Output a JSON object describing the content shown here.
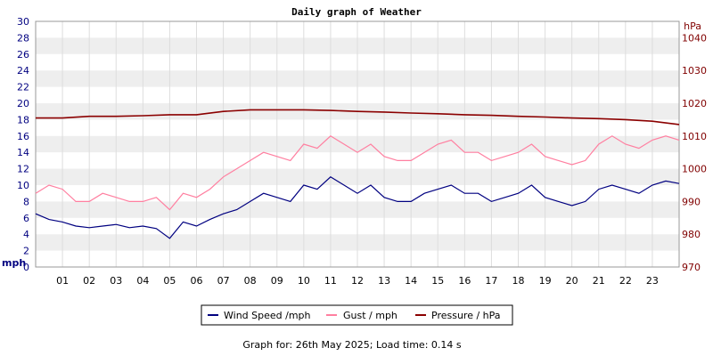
{
  "chart_data": {
    "type": "line",
    "title": "Daily graph of Weather",
    "left_axis": {
      "unit": "mph",
      "min": 0,
      "max": 30,
      "ticks": [
        "0",
        "2",
        "4",
        "6",
        "8",
        "10",
        "12",
        "14",
        "16",
        "18",
        "20",
        "22",
        "24",
        "26",
        "28",
        "30"
      ],
      "color": "#000080"
    },
    "right_axis": {
      "unit": "hPa",
      "min": 970,
      "max": 1045,
      "ticks": [
        "970",
        "980",
        "990",
        "1000",
        "1010",
        "1020",
        "1030",
        "1040"
      ],
      "color": "#800000"
    },
    "x_axis": {
      "min": 0,
      "max": 24,
      "ticks": [
        "01",
        "02",
        "03",
        "04",
        "05",
        "06",
        "07",
        "08",
        "09",
        "10",
        "11",
        "12",
        "13",
        "14",
        "15",
        "16",
        "17",
        "18",
        "19",
        "20",
        "21",
        "22",
        "23"
      ]
    },
    "grid": true,
    "legend_position": "bottom",
    "colors": {
      "wind": "#000080",
      "gust": "#ff7fa0",
      "pressure": "#8b0000",
      "grid_band": "#eeeeee"
    },
    "series": [
      {
        "name": "Wind Speed /mph",
        "axis": "left",
        "x": [
          0,
          0.5,
          1,
          1.5,
          2,
          2.5,
          3,
          3.5,
          4,
          4.5,
          5,
          5.5,
          6,
          6.5,
          7,
          7.5,
          8,
          8.5,
          9,
          9.5,
          10,
          10.5,
          11,
          11.5,
          12,
          12.5,
          13,
          13.5,
          14,
          14.5,
          15,
          15.5,
          16,
          16.5,
          17,
          17.5,
          18,
          18.5,
          19,
          19.5,
          20,
          20.5,
          21,
          21.5,
          22,
          22.5,
          23,
          23.5,
          24
        ],
        "values": [
          6.5,
          5.8,
          5.5,
          5,
          4.8,
          5,
          5.2,
          4.8,
          5,
          4.7,
          3.5,
          5.5,
          5,
          5.8,
          6.5,
          7,
          8,
          9,
          8.5,
          8,
          10,
          9.5,
          11,
          10,
          9,
          10,
          8.5,
          8,
          8,
          9,
          9.5,
          10,
          9,
          9,
          8,
          8.5,
          9,
          10,
          8.5,
          8,
          7.5,
          8,
          9.5,
          10,
          9.5,
          9,
          10,
          10.5,
          10.2
        ]
      },
      {
        "name": "Gust / mph",
        "axis": "left",
        "x": [
          0,
          0.5,
          1,
          1.5,
          2,
          2.5,
          3,
          3.5,
          4,
          4.5,
          5,
          5.5,
          6,
          6.5,
          7,
          7.5,
          8,
          8.5,
          9,
          9.5,
          10,
          10.5,
          11,
          11.5,
          12,
          12.5,
          13,
          13.5,
          14,
          14.5,
          15,
          15.5,
          16,
          16.5,
          17,
          17.5,
          18,
          18.5,
          19,
          19.5,
          20,
          20.5,
          21,
          21.5,
          22,
          22.5,
          23,
          23.5,
          24
        ],
        "values": [
          9,
          10,
          9.5,
          8,
          8,
          9,
          8.5,
          8,
          8,
          8.5,
          7,
          9,
          8.5,
          9.5,
          11,
          12,
          13,
          14,
          13.5,
          13,
          15,
          14.5,
          16,
          15,
          14,
          15,
          13.5,
          13,
          13,
          14,
          15,
          15.5,
          14,
          14,
          13,
          13.5,
          14,
          15,
          13.5,
          13,
          12.5,
          13,
          15,
          16,
          15,
          14.5,
          15.5,
          16,
          15.5
        ]
      },
      {
        "name": "Pressure / hPa",
        "axis": "right",
        "x": [
          0,
          1,
          2,
          3,
          4,
          5,
          6,
          7,
          8,
          9,
          10,
          11,
          12,
          13,
          14,
          15,
          16,
          17,
          18,
          19,
          20,
          21,
          22,
          23,
          24
        ],
        "values": [
          1015.5,
          1015.5,
          1016,
          1016,
          1016.2,
          1016.5,
          1016.5,
          1017.5,
          1018,
          1018,
          1018,
          1017.8,
          1017.5,
          1017.3,
          1017,
          1016.8,
          1016.5,
          1016.3,
          1016,
          1015.8,
          1015.5,
          1015.3,
          1015,
          1014.5,
          1013.5
        ]
      }
    ]
  },
  "footer": "Graph for: 26th May 2025; Load time: 0.14 s"
}
